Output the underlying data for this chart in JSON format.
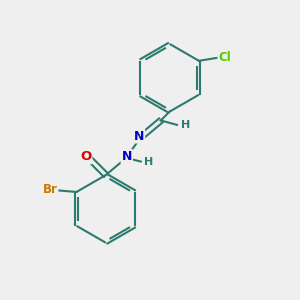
{
  "bg_color": "#efefef",
  "bond_color": "#2d7a6e",
  "bond_width": 1.5,
  "atom_colors": {
    "Br": "#cc7700",
    "Cl": "#55cc00",
    "O": "#dd0000",
    "N": "#0000cc",
    "H": "#2d7a6e",
    "C": "#2d7a6e"
  },
  "font_size_atom": 8.5
}
